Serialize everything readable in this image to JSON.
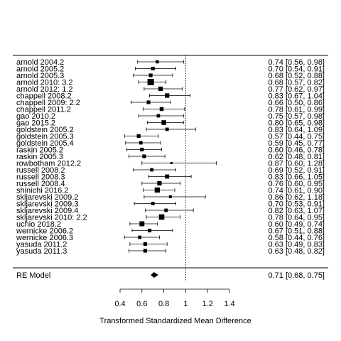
{
  "chart_data": {
    "type": "forest",
    "xlabel": "Transformed Standardized Mean Difference",
    "xlim": [
      0.4,
      1.4
    ],
    "xticks": [
      0.4,
      0.6,
      0.8,
      1,
      1.2,
      1.4
    ],
    "tick_labels": [
      "0.4",
      "0.6",
      "0.8",
      "1",
      "1.2",
      "1.4"
    ],
    "reference_line": 1,
    "studies": [
      {
        "label": "arnold 2004.2",
        "est": 0.74,
        "lo": 0.56,
        "hi": 0.98,
        "ci_text": "0.74 [0.56, 0.98]",
        "w": 0.35
      },
      {
        "label": "arnold 2005.2",
        "est": 0.7,
        "lo": 0.54,
        "hi": 0.91,
        "ci_text": "0.70 [0.54, 0.91]",
        "w": 0.45
      },
      {
        "label": "arnold 2005.3",
        "est": 0.68,
        "lo": 0.52,
        "hi": 0.88,
        "ci_text": "0.68 [0.52, 0.88]",
        "w": 0.45
      },
      {
        "label": "arnold 2010: 3.2",
        "est": 0.68,
        "lo": 0.57,
        "hi": 0.82,
        "ci_text": "0.68 [0.57, 0.82]",
        "w": 1.0
      },
      {
        "label": "arnold 2012: 1.2",
        "est": 0.77,
        "lo": 0.62,
        "hi": 0.97,
        "ci_text": "0.77 [0.62, 0.97]",
        "w": 0.6
      },
      {
        "label": "chappell 2008.2",
        "est": 0.83,
        "lo": 0.67,
        "hi": 1.04,
        "ci_text": "0.83 [0.67, 1.04]",
        "w": 0.6
      },
      {
        "label": "chappell 2009: 2.2",
        "est": 0.66,
        "lo": 0.5,
        "hi": 0.86,
        "ci_text": "0.66 [0.50, 0.86]",
        "w": 0.45
      },
      {
        "label": "chappell 2011.2",
        "est": 0.78,
        "lo": 0.61,
        "hi": 0.99,
        "ci_text": "0.78 [0.61, 0.99]",
        "w": 0.5
      },
      {
        "label": "gao 2010.2",
        "est": 0.75,
        "lo": 0.57,
        "hi": 0.98,
        "ci_text": "0.75 [0.57, 0.98]",
        "w": 0.4
      },
      {
        "label": "gao 2015.2",
        "est": 0.8,
        "lo": 0.65,
        "hi": 0.98,
        "ci_text": "0.80 [0.65, 0.98]",
        "w": 0.65
      },
      {
        "label": "goldstein 2005.2",
        "est": 0.83,
        "lo": 0.64,
        "hi": 1.09,
        "ci_text": "0.83 [0.64, 1.09]",
        "w": 0.4
      },
      {
        "label": "goldstein 2005.3",
        "est": 0.57,
        "lo": 0.44,
        "hi": 0.75,
        "ci_text": "0.57 [0.44, 0.75]",
        "w": 0.45
      },
      {
        "label": "goldstein 2005.4",
        "est": 0.59,
        "lo": 0.45,
        "hi": 0.77,
        "ci_text": "0.59 [0.45, 0.77]",
        "w": 0.4
      },
      {
        "label": "raskin 2005.2",
        "est": 0.6,
        "lo": 0.46,
        "hi": 0.78,
        "ci_text": "0.60 [0.46, 0.78]",
        "w": 0.45
      },
      {
        "label": "raskin 2005.3",
        "est": 0.62,
        "lo": 0.48,
        "hi": 0.81,
        "ci_text": "0.62 [0.48, 0.81]",
        "w": 0.45
      },
      {
        "label": "rowbotham 2012.2",
        "est": 0.87,
        "lo": 0.6,
        "hi": 1.28,
        "ci_text": "0.87 [0.60, 1.28]",
        "w": 0.15
      },
      {
        "label": "russell 2008.2",
        "est": 0.69,
        "lo": 0.52,
        "hi": 0.91,
        "ci_text": "0.69 [0.52, 0.91]",
        "w": 0.4
      },
      {
        "label": "russell 2008.3",
        "est": 0.83,
        "lo": 0.66,
        "hi": 1.05,
        "ci_text": "0.83 [0.66, 1.05]",
        "w": 0.55
      },
      {
        "label": "russell 2008.4",
        "est": 0.76,
        "lo": 0.6,
        "hi": 0.95,
        "ci_text": "0.76 [0.60, 0.95]",
        "w": 0.6
      },
      {
        "label": "shinichi 2016.2",
        "est": 0.74,
        "lo": 0.61,
        "hi": 0.9,
        "ci_text": "0.74 [0.61, 0.90]",
        "w": 0.75
      },
      {
        "label": "skljarevski 2009.2",
        "est": 0.86,
        "lo": 0.62,
        "hi": 1.18,
        "ci_text": "0.86 [0.62, 1.18]",
        "w": 0.3
      },
      {
        "label": "skljarevski 2009.3",
        "est": 0.7,
        "lo": 0.53,
        "hi": 0.91,
        "ci_text": "0.70 [0.53, 0.91]",
        "w": 0.4
      },
      {
        "label": "skljarevski 2009.4",
        "est": 0.82,
        "lo": 0.63,
        "hi": 1.07,
        "ci_text": "0.82 [0.63, 1.07]",
        "w": 0.4
      },
      {
        "label": "skljarevski 2010: 2.2",
        "est": 0.78,
        "lo": 0.64,
        "hi": 0.95,
        "ci_text": "0.78 [0.64, 0.95]",
        "w": 0.8
      },
      {
        "label": "uchio 2018.2",
        "est": 0.6,
        "lo": 0.49,
        "hi": 0.74,
        "ci_text": "0.60 [0.49, 0.74]",
        "w": 0.7
      },
      {
        "label": "wernicke 2006.2",
        "est": 0.67,
        "lo": 0.51,
        "hi": 0.88,
        "ci_text": "0.67 [0.51, 0.88]",
        "w": 0.45
      },
      {
        "label": "wernicke 2006.3",
        "est": 0.58,
        "lo": 0.44,
        "hi": 0.76,
        "ci_text": "0.58 [0.44, 0.76]",
        "w": 0.4
      },
      {
        "label": "yasuda 2011.2",
        "est": 0.63,
        "lo": 0.49,
        "hi": 0.83,
        "ci_text": "0.63 [0.49, 0.83]",
        "w": 0.45
      },
      {
        "label": "yasuda 2011.3",
        "est": 0.63,
        "lo": 0.48,
        "hi": 0.82,
        "ci_text": "0.63 [0.48, 0.82]",
        "w": 0.45
      }
    ],
    "summary": {
      "label": "RE Model",
      "est": 0.71,
      "lo": 0.68,
      "hi": 0.75,
      "ci_text": "0.71 [0.68, 0.75]"
    }
  }
}
